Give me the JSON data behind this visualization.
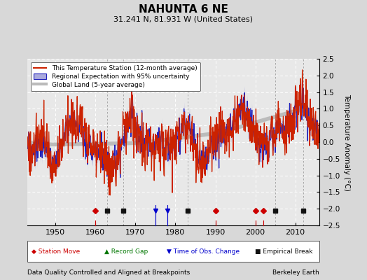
{
  "title": "NAHUNTA 6 NE",
  "subtitle": "31.241 N, 81.931 W (United States)",
  "ylabel": "Temperature Anomaly (°C)",
  "footer_left": "Data Quality Controlled and Aligned at Breakpoints",
  "footer_right": "Berkeley Earth",
  "ylim": [
    -2.5,
    2.5
  ],
  "xlim": [
    1943,
    2016
  ],
  "yticks": [
    -2.5,
    -2,
    -1.5,
    -1,
    -0.5,
    0,
    0.5,
    1,
    1.5,
    2,
    2.5
  ],
  "xticks": [
    1950,
    1960,
    1970,
    1980,
    1990,
    2000,
    2010
  ],
  "bg_color": "#d8d8d8",
  "plot_bg_color": "#e8e8e8",
  "station_move_years": [
    1960,
    1990,
    2000,
    2002
  ],
  "record_gap_years": [],
  "obs_change_years": [
    1975,
    1978
  ],
  "empirical_break_years": [
    1963,
    1967,
    1983,
    2005,
    2012
  ],
  "legend_labels": [
    "This Temperature Station (12-month average)",
    "Regional Expectation with 95% uncertainty",
    "Global Land (5-year average)"
  ],
  "station_move_color": "#cc0000",
  "obs_change_color": "#0000cc",
  "empirical_break_color": "#111111",
  "record_gap_color": "#007700"
}
